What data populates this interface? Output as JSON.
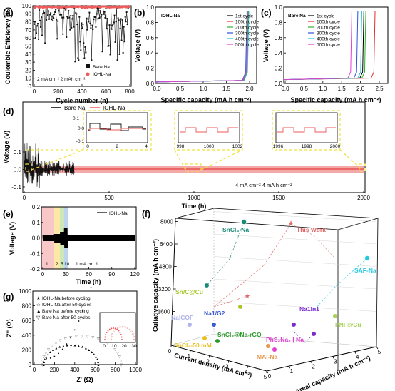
{
  "panels": {
    "a": {
      "label": "(a)",
      "ylabel": "Coulombic Efficiency (%)",
      "xlabel": "Cycle number (n)",
      "yticks": [
        "0",
        "10",
        "20",
        "30",
        "40",
        "50",
        "60",
        "70",
        "80",
        "90",
        "100"
      ],
      "xticks": [
        "0",
        "200",
        "400",
        "600",
        "800"
      ],
      "legend": [
        "Bare Na",
        "IOHL-Na"
      ],
      "note": "2 mA cm⁻²  2 mAh cm⁻²",
      "colors": {
        "bare": "#111111",
        "iohl": "#ee5a5a"
      }
    },
    "b": {
      "label": "(b)",
      "title": "IOHL-Na",
      "ylabel": "Voltage (V)",
      "xlabel": "Specific capacity (mA h cm⁻²)",
      "yticks": [
        "0.0",
        "0.2",
        "0.4",
        "0.6",
        "0.8",
        "1.0"
      ],
      "xticks": [
        "0.0",
        "0.5",
        "1.0",
        "1.5",
        "2.0"
      ],
      "legend": [
        "1st cycle",
        "100th cycle",
        "200th cycle",
        "300th cycle",
        "400th cycle",
        "500th cycle"
      ]
    },
    "c": {
      "label": "(c)",
      "title": "Bare Na",
      "ylabel": "Voltage (V)",
      "xlabel": "Specific capacity (mA h cm⁻²)",
      "yticks": [
        "0.0",
        "0.2",
        "0.4",
        "0.6",
        "0.8",
        "1.0"
      ],
      "xticks": [
        "0.0",
        "0.5",
        "1.0",
        "1.5",
        "2.0",
        "2.5"
      ],
      "legend": [
        "1st cycle",
        "100th cycle",
        "200th cycle",
        "300th cycle",
        "400th cycle",
        "500th cycle"
      ]
    },
    "d": {
      "label": "(d)",
      "ylabel": "Voltage (V)",
      "xlabel": "Time (h)",
      "yticks": [
        "-0.1",
        "0.0",
        "0.1"
      ],
      "xticks": [
        "0",
        "500",
        "1000",
        "1500",
        "2000"
      ],
      "legend": [
        "Bare Na",
        "IOHL-Na"
      ],
      "note": "4 mA cm⁻²  4 mA h cm⁻²",
      "insets": [
        {
          "xticks": [
            "0",
            "2",
            "4"
          ],
          "yticks": [
            "-0.1",
            "0.0",
            "0.1"
          ]
        },
        {
          "xticks": [
            "998",
            "1000",
            "1002"
          ]
        },
        {
          "xticks": [
            "1996",
            "1998",
            "2000"
          ]
        }
      ]
    },
    "e": {
      "label": "(e)",
      "ylabel": "Voltage (V)",
      "xlabel": "Time (h)",
      "yticks": [
        "-0.2",
        "-0.1",
        "0.0",
        "0.1",
        "0.2"
      ],
      "xticks": [
        "0",
        "30",
        "60",
        "90",
        "120"
      ],
      "legend": [
        "IOHL-Na"
      ],
      "bands": [
        "1",
        "2",
        "5",
        "10"
      ],
      "note": "1 mA cm⁻²"
    },
    "f": {
      "label": "(f)",
      "zlabel": "Culiative capacity (mA h cm⁻²)",
      "xlabel": "Current density (mA cm⁻²)",
      "ylabel": "Areal capacity (mA h cm⁻²)",
      "zticks": [
        "1600",
        "3200",
        "4800",
        "6400",
        "8000"
      ],
      "xticks": [
        "0",
        "1",
        "2",
        "3",
        "4",
        "5"
      ],
      "yticks": [
        "0",
        "1",
        "2",
        "3",
        "4",
        "5"
      ],
      "points": [
        {
          "name": "This Work",
          "color": "#e06a6a"
        },
        {
          "name": "SnCl₄-Na",
          "color": "#1a8a78"
        },
        {
          "name": "SAF-Na",
          "color": "#26c8e0"
        },
        {
          "name": "Sn/C@Cu",
          "color": "#a8c82a"
        },
        {
          "name": "Na1In1",
          "color": "#7a2ad0"
        },
        {
          "name": "PNF@Cu",
          "color": "#a8d25a"
        },
        {
          "name": "Na|COF",
          "color": "#b0b4e8"
        },
        {
          "name": "Na1/G2",
          "color": "#3a5ad0"
        },
        {
          "name": "SnCl₂@Na-rGO",
          "color": "#2a9a2a"
        },
        {
          "name": "PhS₂Na₂ | Na",
          "color": "#e040d0"
        },
        {
          "name": "SnCl₄-50 mM",
          "color": "#e8c020"
        },
        {
          "name": "MAI-Na",
          "color": "#e89a50"
        }
      ]
    },
    "g": {
      "label": "(g)",
      "ylabel": "Z'' (Ω)",
      "xlabel": "Z' (Ω)",
      "yticks": [
        "0",
        "200",
        "400",
        "600",
        "800",
        "1000"
      ],
      "xticks": [
        "0",
        "200",
        "400",
        "600",
        "800",
        "1000"
      ],
      "inset_xticks": [
        "0",
        "10",
        "20",
        "30"
      ],
      "legend": [
        "IOHL-Na before cycling",
        "IOHL-Na after 50 cycles",
        "Bare Na before cycling",
        "Bare Na after 50 cycles"
      ]
    }
  },
  "chart_data": [
    {
      "type": "scatter",
      "title": "",
      "xlabel": "Cycle number (n)",
      "ylabel": "Coulombic Efficiency (%)",
      "xlim": [
        0,
        800
      ],
      "ylim": [
        0,
        100
      ],
      "series": [
        {
          "name": "Bare Na",
          "x": [
            5,
            40,
            80,
            120,
            160,
            200,
            260,
            320,
            380,
            440,
            500,
            560,
            620,
            680,
            740,
            790
          ],
          "y": [
            88,
            62,
            95,
            55,
            82,
            70,
            91,
            78,
            66,
            89,
            40,
            84,
            72,
            93,
            58,
            90
          ]
        },
        {
          "name": "IOHL-Na",
          "x": [
            5,
            100,
            200,
            300,
            400,
            500,
            600,
            700,
            800
          ],
          "y": [
            99,
            99.5,
            99.6,
            99.7,
            99.6,
            99.7,
            99.7,
            99.6,
            99.7
          ]
        }
      ]
    },
    {
      "type": "line",
      "title": "IOHL-Na",
      "xlabel": "Specific capacity (mA h cm⁻²)",
      "ylabel": "Voltage (V)",
      "xlim": [
        0,
        2.2
      ],
      "ylim": [
        0,
        1.0
      ],
      "series": [
        {
          "name": "1st cycle",
          "x": [
            0,
            1.9,
            2.0
          ],
          "y": [
            0.02,
            0.03,
            0.9
          ]
        },
        {
          "name": "500th cycle",
          "x": [
            0,
            1.95,
            2.02
          ],
          "y": [
            0.02,
            0.03,
            1.0
          ]
        }
      ]
    },
    {
      "type": "line",
      "title": "Bare Na",
      "xlabel": "Specific capacity (mA h cm⁻²)",
      "ylabel": "Voltage (V)",
      "xlim": [
        0,
        2.6
      ],
      "ylim": [
        0,
        1.0
      ],
      "series": [
        {
          "name": "1st cycle",
          "x": [
            0,
            1.95,
            2.0
          ],
          "y": [
            0.05,
            0.08,
            0.97
          ]
        },
        {
          "name": "500th cycle",
          "x": [
            0,
            1.62,
            1.7
          ],
          "y": [
            0.05,
            0.08,
            0.97
          ]
        }
      ]
    },
    {
      "type": "line",
      "title": "",
      "xlabel": "Time (h)",
      "ylabel": "Voltage (V)",
      "xlim": [
        0,
        2000
      ],
      "ylim": [
        -0.1,
        0.15
      ],
      "series": [
        {
          "name": "Bare Na",
          "x": [
            0,
            300
          ],
          "y": [
            0,
            0
          ]
        },
        {
          "name": "IOHL-Na",
          "x": [
            0,
            2000
          ],
          "y": [
            0,
            0
          ]
        }
      ]
    },
    {
      "type": "line",
      "title": "",
      "xlabel": "Time (h)",
      "ylabel": "Voltage (V)",
      "xlim": [
        0,
        120
      ],
      "ylim": [
        -0.2,
        0.2
      ],
      "series": [
        {
          "name": "IOHL-Na",
          "x": [
            0,
            120
          ],
          "y": [
            0,
            0
          ]
        }
      ]
    },
    {
      "type": "scatter",
      "title": "",
      "xlabel": "Current density (mA cm⁻²)",
      "ylabel": "Areal capacity (mA h cm⁻²)",
      "zlabel": "Culiative capacity (mA h cm⁻²)",
      "zlim": [
        1600,
        8000
      ],
      "series": [
        {
          "name": "This Work",
          "x": [
            4
          ],
          "y": [
            4
          ],
          "z": [
            8000
          ]
        }
      ]
    },
    {
      "type": "scatter",
      "title": "",
      "xlabel": "Z' (Ω)",
      "ylabel": "Z'' (Ω)",
      "xlim": [
        0,
        1000
      ],
      "ylim": [
        0,
        1000
      ],
      "series": [
        {
          "name": "Bare Na before cycling",
          "x": [
            100,
            300,
            500,
            650
          ],
          "y": [
            20,
            250,
            150,
            0
          ]
        },
        {
          "name": "Bare Na after 50 cycles",
          "x": [
            100,
            400,
            700,
            900
          ],
          "y": [
            20,
            300,
            280,
            0
          ]
        }
      ]
    }
  ]
}
